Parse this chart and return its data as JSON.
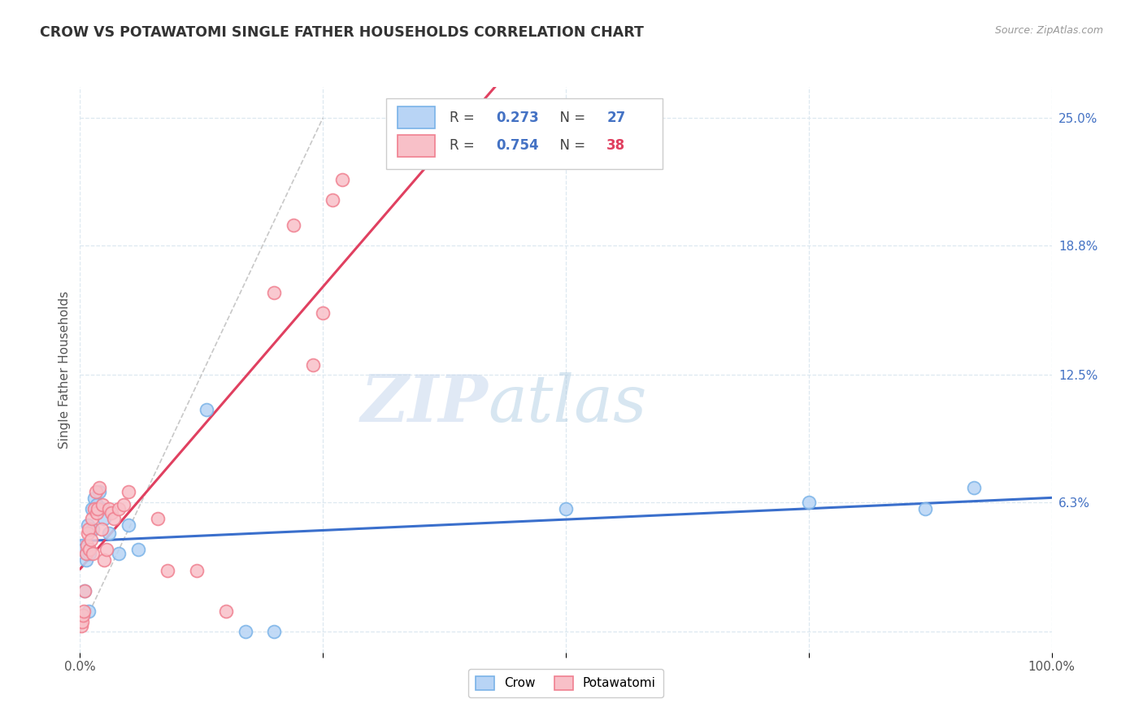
{
  "title": "CROW VS POTAWATOMI SINGLE FATHER HOUSEHOLDS CORRELATION CHART",
  "source": "Source: ZipAtlas.com",
  "ylabel": "Single Father Households",
  "xlim": [
    0,
    1.0
  ],
  "ylim": [
    -0.01,
    0.265
  ],
  "xtick_positions": [
    0.0,
    0.25,
    0.5,
    0.75,
    1.0
  ],
  "xticklabels": [
    "0.0%",
    "",
    "",
    "",
    "100.0%"
  ],
  "ytick_positions": [
    0.0,
    0.063,
    0.125,
    0.188,
    0.25
  ],
  "yticklabels": [
    "",
    "6.3%",
    "12.5%",
    "18.8%",
    "25.0%"
  ],
  "crow_color": "#7ab3e8",
  "crow_fill": "#b8d4f5",
  "potawatomi_color": "#f08090",
  "potawatomi_fill": "#f8c0c8",
  "trendline_crow_color": "#3a6fcc",
  "trendline_pota_color": "#e04060",
  "diagonal_color": "#c8c8c8",
  "legend_r_crow_val": "0.273",
  "legend_n_crow_val": "27",
  "legend_r_pota_val": "0.754",
  "legend_n_pota_val": "38",
  "r_color": "#4472c4",
  "n_color_crow": "#4472c4",
  "n_color_pota": "#e04060",
  "watermark_zip": "ZIP",
  "watermark_atlas": "atlas",
  "background_color": "#ffffff",
  "grid_color": "#dde8f0",
  "crow_x": [
    0.001,
    0.002,
    0.004,
    0.005,
    0.006,
    0.007,
    0.008,
    0.009,
    0.01,
    0.012,
    0.013,
    0.015,
    0.017,
    0.02,
    0.022,
    0.025,
    0.03,
    0.04,
    0.05,
    0.06,
    0.13,
    0.17,
    0.2,
    0.5,
    0.75,
    0.87,
    0.92
  ],
  "crow_y": [
    0.04,
    0.042,
    0.04,
    0.02,
    0.035,
    0.038,
    0.052,
    0.01,
    0.038,
    0.06,
    0.05,
    0.065,
    0.062,
    0.068,
    0.06,
    0.055,
    0.048,
    0.038,
    0.052,
    0.04,
    0.108,
    0.0,
    0.0,
    0.06,
    0.063,
    0.06,
    0.07
  ],
  "pota_x": [
    0.001,
    0.002,
    0.003,
    0.004,
    0.005,
    0.006,
    0.007,
    0.008,
    0.009,
    0.01,
    0.011,
    0.012,
    0.013,
    0.015,
    0.016,
    0.017,
    0.018,
    0.02,
    0.022,
    0.023,
    0.025,
    0.027,
    0.03,
    0.032,
    0.035,
    0.04,
    0.045,
    0.05,
    0.08,
    0.09,
    0.12,
    0.15,
    0.2,
    0.22,
    0.24,
    0.25,
    0.26,
    0.27
  ],
  "pota_y": [
    0.003,
    0.005,
    0.008,
    0.01,
    0.02,
    0.038,
    0.042,
    0.048,
    0.05,
    0.04,
    0.045,
    0.055,
    0.038,
    0.06,
    0.068,
    0.058,
    0.06,
    0.07,
    0.05,
    0.062,
    0.035,
    0.04,
    0.06,
    0.058,
    0.055,
    0.06,
    0.062,
    0.068,
    0.055,
    0.03,
    0.03,
    0.01,
    0.165,
    0.198,
    0.13,
    0.155,
    0.21,
    0.22
  ]
}
